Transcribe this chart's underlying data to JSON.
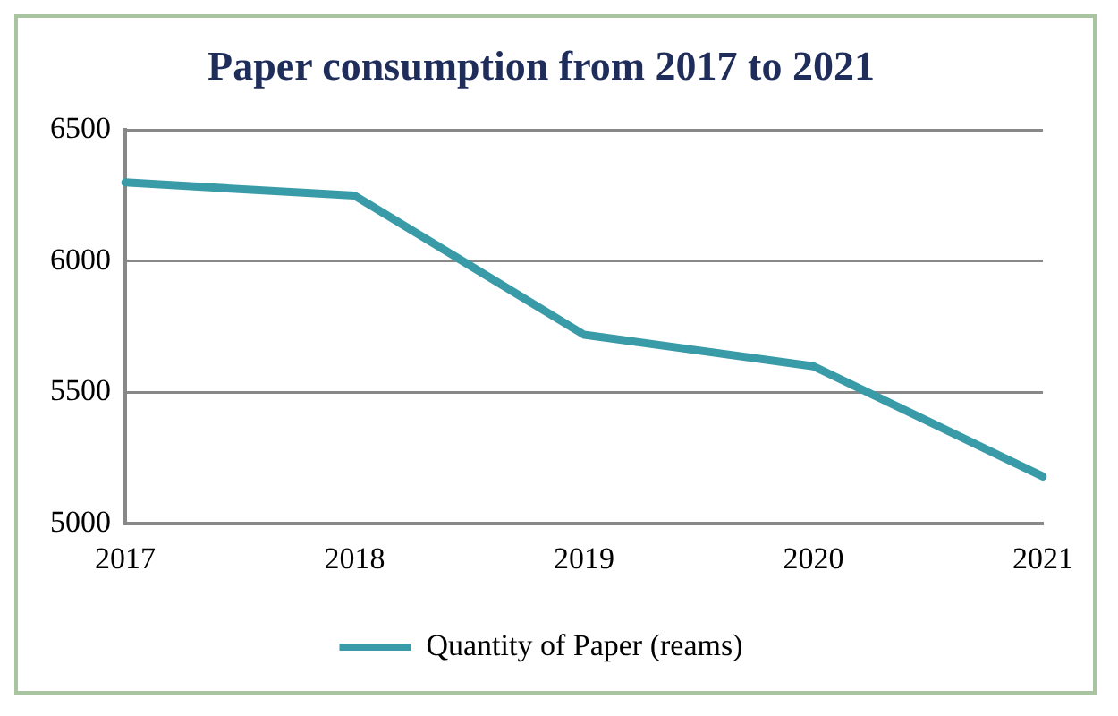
{
  "chart_data": {
    "type": "line",
    "title": "Paper consumption from 2017 to 2021",
    "categories": [
      "2017",
      "2018",
      "2019",
      "2020",
      "2021"
    ],
    "series": [
      {
        "name": "Quantity of Paper (reams)",
        "color": "#3a9ba8",
        "values": [
          6300,
          6250,
          5720,
          5600,
          5180
        ]
      }
    ],
    "ylim": [
      5000,
      6500
    ],
    "yticks": [
      5000,
      5500,
      6000,
      6500
    ],
    "grid": "y",
    "legend": "bottom",
    "marker": "none"
  }
}
